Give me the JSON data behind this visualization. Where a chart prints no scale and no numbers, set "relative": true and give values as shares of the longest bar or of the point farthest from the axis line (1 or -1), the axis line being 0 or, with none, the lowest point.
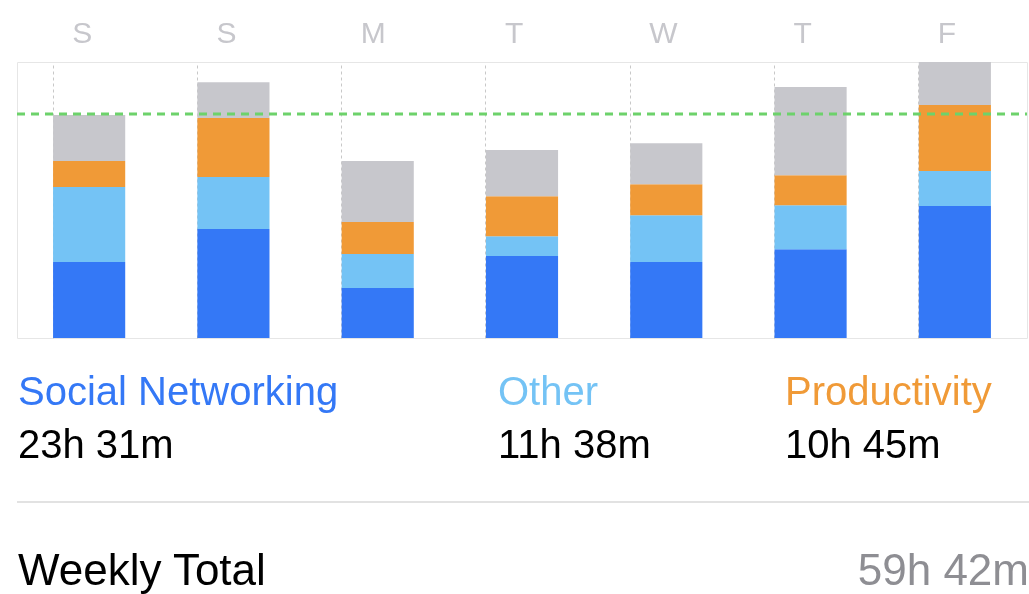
{
  "chart_data": {
    "type": "bar",
    "stacked": true,
    "relative": true,
    "categories": [
      "S",
      "S",
      "M",
      "T",
      "W",
      "T",
      "F"
    ],
    "series": [
      {
        "name": "Social Networking",
        "color": "#3478f6",
        "values": [
          0.275,
          0.395,
          0.181,
          0.297,
          0.275,
          0.322,
          0.478
        ]
      },
      {
        "name": "Other",
        "color": "#74c3f5",
        "values": [
          0.272,
          0.188,
          0.123,
          0.072,
          0.17,
          0.159,
          0.127
        ]
      },
      {
        "name": "Productivity",
        "color": "#f09a37",
        "values": [
          0.094,
          0.214,
          0.116,
          0.145,
          0.112,
          0.109,
          0.239
        ]
      },
      {
        "color": "#c7c7cc",
        "values": [
          0.167,
          0.13,
          0.221,
          0.167,
          0.149,
          0.319,
          0.156
        ]
      }
    ],
    "ref_lines": [
      {
        "axis": "y",
        "value": 0.812,
        "color": "#6dd26b",
        "line_style": "dashed"
      }
    ],
    "grid": "x",
    "legend": "bottom",
    "annotations": [
      "23h 31m",
      "11h 38m",
      "10h 45m",
      "Weekly Total",
      "59h 42m"
    ]
  }
}
